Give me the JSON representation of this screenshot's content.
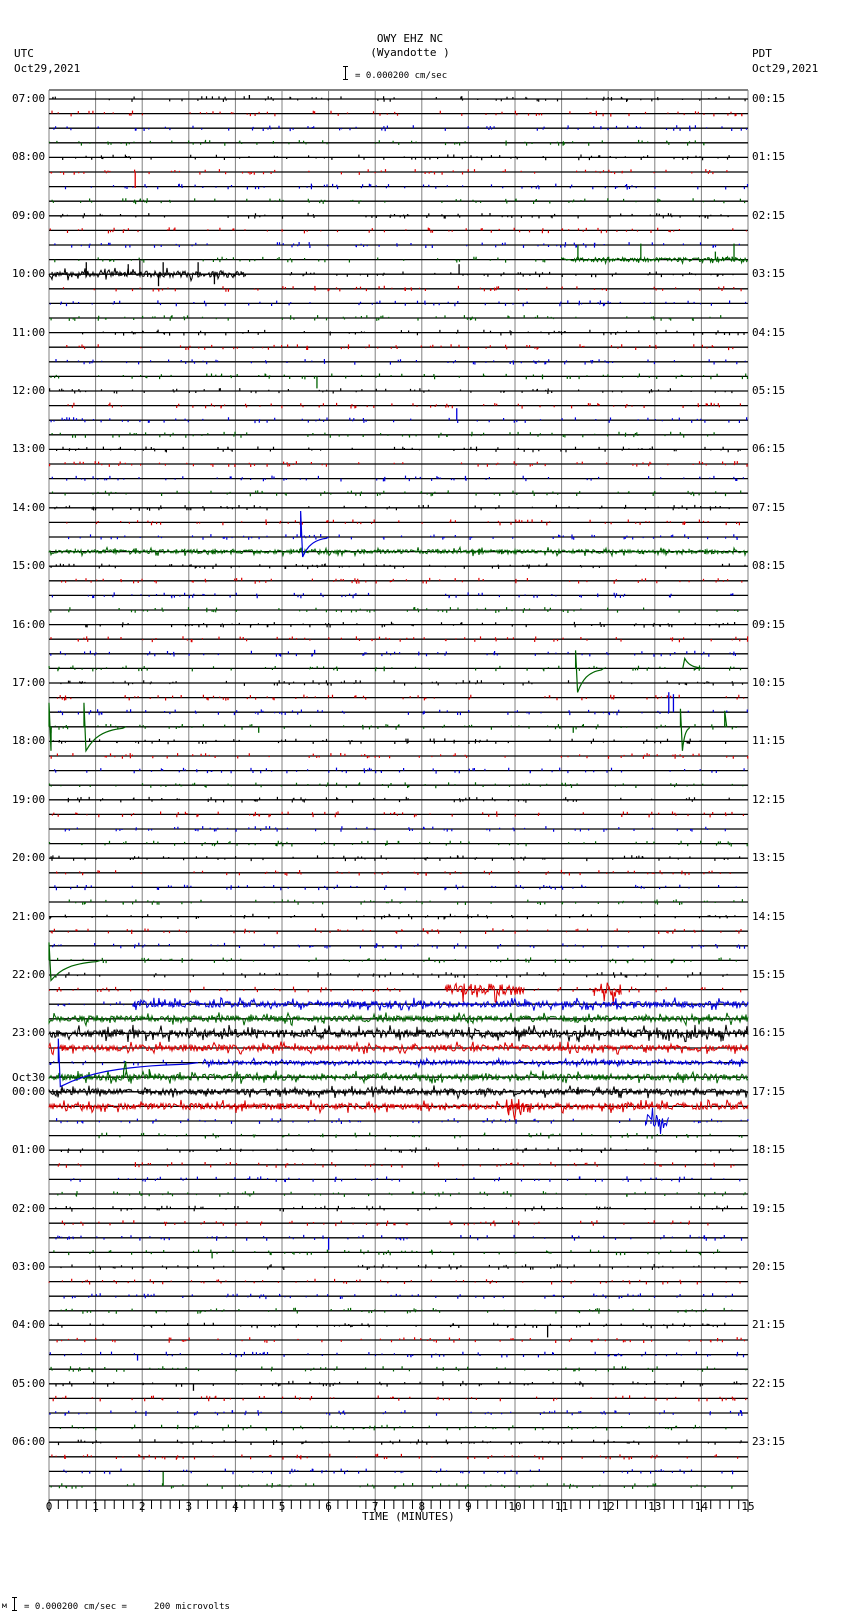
{
  "header": {
    "station": "OWY EHZ NC",
    "location": "(Wyandotte )",
    "scale": "= 0.000200 cm/sec",
    "left_tz": "UTC",
    "left_date": "Oct29,2021",
    "right_tz": "PDT",
    "right_date": "Oct29,2021"
  },
  "footer": {
    "scale_note": "= 0.000200 cm/sec =     200 microvolts",
    "prefix": "м"
  },
  "colors": {
    "trace_cycle": [
      "#000000",
      "#dd0000",
      "#0000dd",
      "#006400"
    ],
    "grid": "#808080",
    "baseline": "#000000"
  },
  "chart_data": {
    "type": "line",
    "title": "OWY EHZ NC (Wyandotte ) helicorder",
    "xlabel": "TIME (MINUTES)",
    "ylabel": "",
    "xlim": [
      0,
      15
    ],
    "x_ticks": [
      "0",
      "1",
      "2",
      "3",
      "4",
      "5",
      "6",
      "7",
      "8",
      "9",
      "10",
      "11",
      "12",
      "13",
      "14",
      "15"
    ],
    "traces_per_hour": 4,
    "trace_count": 96,
    "left_labels": [
      {
        "row": 0,
        "text": "07:00"
      },
      {
        "row": 4,
        "text": "08:00"
      },
      {
        "row": 8,
        "text": "09:00"
      },
      {
        "row": 12,
        "text": "10:00"
      },
      {
        "row": 16,
        "text": "11:00"
      },
      {
        "row": 20,
        "text": "12:00"
      },
      {
        "row": 24,
        "text": "13:00"
      },
      {
        "row": 28,
        "text": "14:00"
      },
      {
        "row": 32,
        "text": "15:00"
      },
      {
        "row": 36,
        "text": "16:00"
      },
      {
        "row": 40,
        "text": "17:00"
      },
      {
        "row": 44,
        "text": "18:00"
      },
      {
        "row": 48,
        "text": "19:00"
      },
      {
        "row": 52,
        "text": "20:00"
      },
      {
        "row": 56,
        "text": "21:00"
      },
      {
        "row": 60,
        "text": "22:00"
      },
      {
        "row": 64,
        "text": "23:00"
      },
      {
        "row": 68,
        "text": "00:00",
        "extra": "Oct30"
      },
      {
        "row": 72,
        "text": "01:00"
      },
      {
        "row": 76,
        "text": "02:00"
      },
      {
        "row": 80,
        "text": "03:00"
      },
      {
        "row": 84,
        "text": "04:00"
      },
      {
        "row": 88,
        "text": "05:00"
      },
      {
        "row": 92,
        "text": "06:00"
      }
    ],
    "right_labels": [
      {
        "row": 0,
        "text": "00:15"
      },
      {
        "row": 4,
        "text": "01:15"
      },
      {
        "row": 8,
        "text": "02:15"
      },
      {
        "row": 12,
        "text": "03:15"
      },
      {
        "row": 16,
        "text": "04:15"
      },
      {
        "row": 20,
        "text": "05:15"
      },
      {
        "row": 24,
        "text": "06:15"
      },
      {
        "row": 28,
        "text": "07:15"
      },
      {
        "row": 32,
        "text": "08:15"
      },
      {
        "row": 36,
        "text": "09:15"
      },
      {
        "row": 40,
        "text": "10:15"
      },
      {
        "row": 44,
        "text": "11:15"
      },
      {
        "row": 48,
        "text": "12:15"
      },
      {
        "row": 52,
        "text": "13:15"
      },
      {
        "row": 56,
        "text": "14:15"
      },
      {
        "row": 60,
        "text": "15:15"
      },
      {
        "row": 64,
        "text": "16:15"
      },
      {
        "row": 68,
        "text": "17:15"
      },
      {
        "row": 72,
        "text": "18:15"
      },
      {
        "row": 76,
        "text": "19:15"
      },
      {
        "row": 80,
        "text": "20:15"
      },
      {
        "row": 84,
        "text": "21:15"
      },
      {
        "row": 88,
        "text": "22:15"
      },
      {
        "row": 92,
        "text": "23:15"
      }
    ],
    "noisy_rows": [
      {
        "row": 11,
        "from": 11.0,
        "to": 15,
        "amp": 2
      },
      {
        "row": 12,
        "from": 0,
        "to": 4.2,
        "amp": 3
      },
      {
        "row": 31,
        "from": 0,
        "to": 15,
        "amp": 2
      },
      {
        "row": 61,
        "from": 8.5,
        "to": 10.2,
        "amp": 6
      },
      {
        "row": 61,
        "from": 11.7,
        "to": 12.3,
        "amp": 7
      },
      {
        "row": 62,
        "from": 1.8,
        "to": 15,
        "amp": 3
      },
      {
        "row": 63,
        "from": 0,
        "to": 15,
        "amp": 3
      },
      {
        "row": 64,
        "from": 0,
        "to": 15,
        "amp": 4
      },
      {
        "row": 65,
        "from": 0,
        "to": 15,
        "amp": 3
      },
      {
        "row": 66,
        "from": 3.3,
        "to": 15,
        "amp": 2
      },
      {
        "row": 67,
        "from": 0,
        "to": 15,
        "amp": 3
      },
      {
        "row": 68,
        "from": 0,
        "to": 15,
        "amp": 3
      },
      {
        "row": 69,
        "from": 0,
        "to": 15,
        "amp": 3
      },
      {
        "row": 69,
        "from": 9.8,
        "to": 10.3,
        "amp": 9
      },
      {
        "row": 70,
        "from": 12.8,
        "to": 13.3,
        "amp": 7
      }
    ],
    "spikes": [
      {
        "row": 0,
        "x": 4.3,
        "h": 4
      },
      {
        "row": 5,
        "x": 1.85,
        "h": -16
      },
      {
        "row": 11,
        "x": 11.35,
        "h": 14
      },
      {
        "row": 11,
        "x": 12.7,
        "h": 16
      },
      {
        "row": 11,
        "x": 14.3,
        "h": 8
      },
      {
        "row": 11,
        "x": 14.7,
        "h": 16
      },
      {
        "row": 12,
        "x": 0.8,
        "h": 12
      },
      {
        "row": 12,
        "x": 1.7,
        "h": 10
      },
      {
        "row": 12,
        "x": 1.95,
        "h": 14
      },
      {
        "row": 12,
        "x": 2.35,
        "h": -12
      },
      {
        "row": 12,
        "x": 2.45,
        "h": 12
      },
      {
        "row": 12,
        "x": 3.2,
        "h": 12
      },
      {
        "row": 12,
        "x": 3.55,
        "h": -10
      },
      {
        "row": 12,
        "x": 8.8,
        "h": 10
      },
      {
        "row": 19,
        "x": 5.75,
        "h": -12
      },
      {
        "row": 22,
        "x": 8.75,
        "h": 12
      },
      {
        "row": 38,
        "x": 5.7,
        "h": 4
      },
      {
        "row": 43,
        "x": 4.5,
        "h": -6
      },
      {
        "row": 43,
        "x": 11.25,
        "h": -6
      },
      {
        "row": 42,
        "x": 13.3,
        "h": 20
      },
      {
        "row": 42,
        "x": 13.4,
        "h": 18
      },
      {
        "row": 78,
        "x": 6.0,
        "h": -12
      },
      {
        "row": 79,
        "x": 3.5,
        "h": -6
      },
      {
        "row": 84,
        "x": 10.7,
        "h": -12
      },
      {
        "row": 86,
        "x": 1.9,
        "h": -6
      },
      {
        "row": 88,
        "x": 3.1,
        "h": -7
      },
      {
        "row": 93,
        "x": 7.05,
        "h": 3
      },
      {
        "row": 95,
        "x": 2.45,
        "h": 14
      }
    ],
    "transients": [
      {
        "row": 30,
        "x": 5.4,
        "up": 26,
        "dip": 20,
        "dur": 0.6
      },
      {
        "row": 39,
        "x": 11.3,
        "up": 18,
        "dip": 24,
        "dur": 0.6
      },
      {
        "row": 39,
        "x": 13.6,
        "up": 0,
        "dip": -10,
        "dur": 0.4
      },
      {
        "row": 43,
        "x": 13.55,
        "up": 18,
        "dip": 24,
        "dur": 0.2
      },
      {
        "row": 43,
        "x": 14.5,
        "up": 16,
        "dip": 0,
        "dur": 0.05
      },
      {
        "row": 43,
        "x": 0.0,
        "up": 24,
        "dip": 24,
        "dur": 0.05
      },
      {
        "row": 43,
        "x": 0.75,
        "up": 24,
        "dip": 24,
        "dur": 0.9
      },
      {
        "row": 59,
        "x": 0.0,
        "up": 18,
        "dip": 20,
        "dur": 1.1
      },
      {
        "row": 66,
        "x": 0.2,
        "up": 24,
        "dip": 24,
        "dur": 3.0
      },
      {
        "row": 67,
        "x": 1.6,
        "up": 6,
        "dip": -16,
        "dur": 0.1
      },
      {
        "row": 67,
        "x": 2.15,
        "up": 8,
        "dip": 0,
        "dur": 0.1
      }
    ]
  }
}
